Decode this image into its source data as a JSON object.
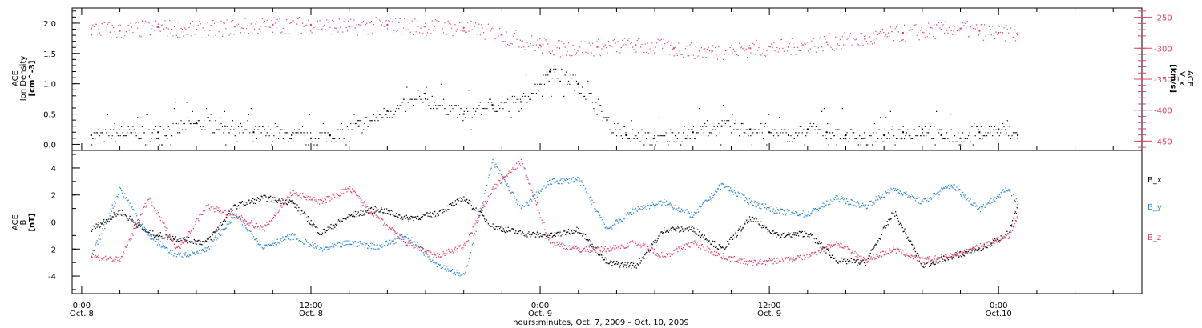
{
  "chart_data": [
    {
      "type": "scatter",
      "panel": "top",
      "ylabel_left": [
        "ACE",
        "Ion Density",
        "[cm^-3]"
      ],
      "ylabel_right": [
        "ACE",
        "V_x",
        "[km/s]"
      ],
      "ylim_left": [
        -0.1,
        2.25
      ],
      "ylim_right": [
        -465,
        -235
      ],
      "yticks_left": [
        "0.0",
        "0.5",
        "1.0",
        "1.5",
        "2.0"
      ],
      "ytick_values_left": [
        0,
        0.5,
        1.0,
        1.5,
        2.0
      ],
      "yticks_right": [
        "-250",
        "-300",
        "-350",
        "-400",
        "-450"
      ],
      "ytick_values_right": [
        -250,
        -300,
        -350,
        -400,
        -450
      ],
      "series": [
        {
          "name": "Ion Density",
          "color": "#000000",
          "axis": "left",
          "x": [
            0.5,
            4,
            6,
            7.5,
            9,
            11,
            12,
            13,
            14.5,
            16,
            18,
            20,
            21.5,
            23,
            24.5,
            26,
            27.5,
            28.5,
            30,
            32,
            33.5,
            35,
            36,
            37,
            38,
            39,
            40,
            41,
            42,
            43,
            44,
            45,
            46,
            47,
            48,
            49
          ],
          "y": [
            0.15,
            0.2,
            0.35,
            0.3,
            0.2,
            0.15,
            0.1,
            0.15,
            0.3,
            0.55,
            0.75,
            0.5,
            0.65,
            0.7,
            1.2,
            1.0,
            0.4,
            0.15,
            0.1,
            0.2,
            0.3,
            0.25,
            0.2,
            0.15,
            0.25,
            0.2,
            0.15,
            0.1,
            0.15,
            0.2,
            0.25,
            0.15,
            0.1,
            0.2,
            0.25,
            0.15
          ]
        },
        {
          "name": "Vx",
          "color": "#e0406a",
          "axis": "right",
          "x": [
            0.5,
            2,
            4,
            6,
            8,
            10,
            12,
            14,
            16,
            18,
            20,
            22,
            24,
            25,
            27,
            29,
            31,
            33,
            35,
            37,
            39,
            41,
            43,
            45,
            46,
            47,
            48,
            49
          ],
          "y": [
            -268,
            -272,
            -266,
            -270,
            -265,
            -262,
            -262,
            -265,
            -262,
            -265,
            -267,
            -278,
            -295,
            -300,
            -298,
            -295,
            -300,
            -305,
            -300,
            -298,
            -290,
            -285,
            -275,
            -270,
            -268,
            -272,
            -275,
            -278
          ]
        }
      ]
    },
    {
      "type": "scatter",
      "panel": "bottom",
      "ylabel": [
        "ACE",
        "B",
        "[nT]"
      ],
      "ylim": [
        -5.3,
        5.3
      ],
      "yticks": [
        "-4",
        "-2",
        "0",
        "2",
        "4"
      ],
      "ytick_values": [
        -4,
        -2,
        0,
        2,
        4
      ],
      "legend": [
        "B_x",
        "B_y",
        "B_z"
      ],
      "legend_placement": "right",
      "xlabel": "hours:minutes, Oct.  7, 2009 – Oct. 10, 2009",
      "xlim": [
        -0.5,
        55.5
      ],
      "xticks": [
        {
          "hour": 0,
          "time": "0:00",
          "date": "Oct. 8"
        },
        {
          "hour": 12,
          "time": "12:00",
          "date": "Oct. 8"
        },
        {
          "hour": 24,
          "time": "0:00",
          "date": "Oct. 9"
        },
        {
          "hour": 36,
          "time": "12:00",
          "date": "Oct. 9"
        },
        {
          "hour": 48,
          "time": "0:00",
          "date": "Oct.10"
        }
      ],
      "series": [
        {
          "name": "Bx",
          "color": "#000000",
          "x": [
            0.5,
            2,
            3.5,
            5,
            6.5,
            8,
            9.5,
            11,
            12.5,
            14,
            15.5,
            17,
            18.5,
            20,
            21.5,
            23,
            24.5,
            26,
            27.5,
            29,
            30.5,
            32,
            33.5,
            35,
            36.5,
            38,
            39.5,
            41,
            42.5,
            44,
            45.5,
            47,
            48.5,
            49
          ],
          "y": [
            -0.5,
            0.8,
            -0.8,
            -1.2,
            -1.5,
            1.2,
            1.8,
            1.5,
            -0.8,
            0.5,
            1.0,
            0.3,
            0.6,
            1.8,
            -0.3,
            -0.8,
            -1.0,
            -0.5,
            -3.0,
            -3.2,
            -0.5,
            -0.5,
            -2.0,
            0.3,
            -1.0,
            -0.8,
            -2.8,
            -3.0,
            0.8,
            -3.2,
            -2.5,
            -2.0,
            -0.8,
            1.2
          ]
        },
        {
          "name": "By",
          "color": "#2e86d6",
          "x": [
            0.5,
            2,
            3.5,
            5,
            6.5,
            8,
            9.5,
            11,
            12.5,
            14,
            15.5,
            17,
            18.5,
            20,
            21.5,
            23,
            24.5,
            26,
            27.5,
            29,
            30.5,
            32,
            33.5,
            35,
            36.5,
            38,
            39.5,
            41,
            42.5,
            44,
            45.5,
            47,
            48.5,
            49
          ],
          "y": [
            -2.5,
            2.5,
            -1.0,
            -2.5,
            -2.0,
            0.5,
            -1.8,
            -1.0,
            -2.0,
            -1.5,
            -1.8,
            -1.0,
            -3.0,
            -4.0,
            4.5,
            1.0,
            3.0,
            3.2,
            -0.5,
            1.0,
            1.5,
            0.5,
            2.8,
            1.5,
            0.8,
            0.6,
            1.8,
            1.2,
            2.5,
            1.5,
            2.8,
            1.0,
            2.5,
            1.5
          ]
        },
        {
          "name": "Bz",
          "color": "#e0406a",
          "x": [
            0.5,
            2,
            3.5,
            5,
            6.5,
            8,
            9.5,
            11,
            12.5,
            14,
            15.5,
            17,
            18.5,
            20,
            21.5,
            23,
            24.5,
            26,
            27.5,
            29,
            30.5,
            32,
            33.5,
            35,
            36.5,
            38,
            39.5,
            41,
            42.5,
            44,
            45.5,
            47,
            48.5,
            49
          ],
          "y": [
            -2.5,
            -2.8,
            1.8,
            -2.0,
            1.2,
            0.5,
            -0.5,
            2.2,
            1.5,
            2.5,
            0.3,
            -1.5,
            -2.5,
            -1.8,
            2.5,
            4.5,
            -1.5,
            -2.0,
            -2.0,
            -1.5,
            -2.5,
            -1.5,
            -2.5,
            -3.0,
            -2.8,
            -2.5,
            -1.5,
            -2.8,
            -2.0,
            -2.8,
            -2.5,
            -1.8,
            -1.0,
            0.5
          ]
        }
      ]
    }
  ]
}
